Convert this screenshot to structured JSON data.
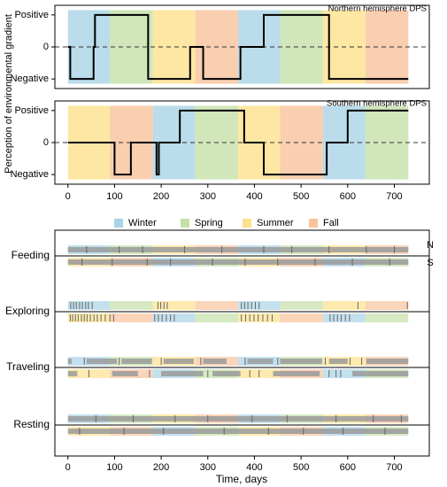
{
  "chart_data": [
    {
      "type": "step",
      "title": "Northern hemisphere DPS",
      "ylabel": "Perception of environmental gradient",
      "xlim": [
        -28,
        775
      ],
      "ylim": [
        -1.3,
        1.3
      ],
      "yticks": [
        {
          "value": 1,
          "label": "Positive"
        },
        0,
        {
          "value": -1,
          "label": "Negative"
        }
      ],
      "season_bands": {
        "edges": [
          0,
          90,
          182,
          273,
          365,
          455,
          547,
          638,
          730
        ],
        "seasons": [
          0,
          1,
          2,
          3,
          0,
          1,
          2,
          3
        ]
      },
      "x": [
        0,
        5,
        5,
        55,
        55,
        58,
        58,
        172,
        172,
        262,
        262,
        290,
        290,
        370,
        370,
        420,
        420,
        560,
        560,
        730
      ],
      "values": [
        0,
        0,
        -1,
        -1,
        0,
        0,
        1,
        1,
        -1,
        -1,
        0,
        0,
        -1,
        -1,
        0,
        0,
        1,
        1,
        -1,
        -1
      ],
      "color": "#000000"
    },
    {
      "type": "step",
      "title": "Southern hemisphere DPS",
      "xlim": [
        -28,
        775
      ],
      "ylim": [
        -1.3,
        1.3
      ],
      "xticks": [
        0,
        100,
        200,
        300,
        400,
        500,
        600,
        700
      ],
      "yticks": [
        {
          "value": 1,
          "label": "Positive"
        },
        0,
        {
          "value": -1,
          "label": "Negative"
        }
      ],
      "season_bands": {
        "edges": [
          0,
          90,
          182,
          273,
          365,
          455,
          547,
          638,
          730
        ],
        "seasons": [
          2,
          3,
          0,
          1,
          2,
          3,
          0,
          1
        ]
      },
      "x": [
        0,
        100,
        100,
        135,
        135,
        190,
        190,
        195,
        195,
        240,
        240,
        378,
        378,
        420,
        420,
        555,
        555,
        600,
        600,
        730
      ],
      "values": [
        0,
        0,
        -1,
        -1,
        0,
        0,
        -1,
        -1,
        0,
        0,
        1,
        1,
        0,
        0,
        -1,
        -1,
        0,
        0,
        1,
        1
      ],
      "color": "#000000"
    },
    {
      "type": "ethogram",
      "xlabel": "Time, days",
      "xlim": [
        -28,
        775
      ],
      "xticks": [
        0,
        100,
        200,
        300,
        400,
        500,
        600,
        700
      ],
      "legend": [
        {
          "name": "Winter",
          "color": "#a9d3e6"
        },
        {
          "name": "Spring",
          "color": "#c5e0a8"
        },
        {
          "name": "Summer",
          "color": "#fde18c"
        },
        {
          "name": "Fall",
          "color": "#f8c39c"
        }
      ],
      "hemispheres": [
        "N",
        "S"
      ],
      "rows": [
        {
          "name": "Feeding",
          "north": [
            [
              0,
              730
            ]
          ],
          "south": [
            [
              0,
              730
            ]
          ],
          "north_ticks": [
            40,
            110,
            160,
            250,
            330,
            420,
            480,
            560,
            640,
            700
          ],
          "south_ticks": [
            30,
            95,
            170,
            220,
            310,
            380,
            450,
            530,
            610,
            690
          ]
        },
        {
          "name": "Exploring",
          "north_ticks": [
            6,
            12,
            18,
            25,
            31,
            38,
            44,
            52,
            193,
            199,
            206,
            213,
            372,
            379,
            386,
            394,
            402,
            410,
            622,
            728
          ],
          "south_ticks": [
            5,
            10,
            16,
            22,
            29,
            35,
            41,
            48,
            56,
            63,
            71,
            80,
            90,
            98,
            186,
            194,
            202,
            211,
            220,
            228,
            372,
            381,
            390,
            399,
            408,
            418,
            428,
            438,
            562,
            570,
            578,
            586,
            595,
            604
          ]
        },
        {
          "name": "Traveling",
          "north": [
            [
              0,
              8
            ],
            [
              40,
              105
            ],
            [
              115,
              180
            ],
            [
              205,
              270
            ],
            [
              290,
              340
            ],
            [
              385,
              440
            ],
            [
              455,
              545
            ],
            [
              560,
              600
            ],
            [
              640,
              730
            ]
          ],
          "south": [
            [
              0,
              20
            ],
            [
              95,
              150
            ],
            [
              200,
              290
            ],
            [
              310,
              370
            ],
            [
              440,
              540
            ],
            [
              610,
              730
            ]
          ],
          "north_ticks": [
            35,
            110,
            200,
            285,
            380,
            450,
            552,
            605,
            630
          ],
          "south_ticks": [
            45,
            175,
            300,
            390,
            410,
            560,
            575,
            585
          ]
        },
        {
          "name": "Resting",
          "north": [
            [
              0,
              730
            ]
          ],
          "south": [
            [
              0,
              730
            ]
          ],
          "north_ticks": [
            60,
            140,
            230,
            300,
            395,
            470,
            575,
            655,
            715
          ],
          "south_ticks": [
            25,
            120,
            205,
            335,
            430,
            505,
            590,
            680
          ]
        }
      ]
    }
  ]
}
